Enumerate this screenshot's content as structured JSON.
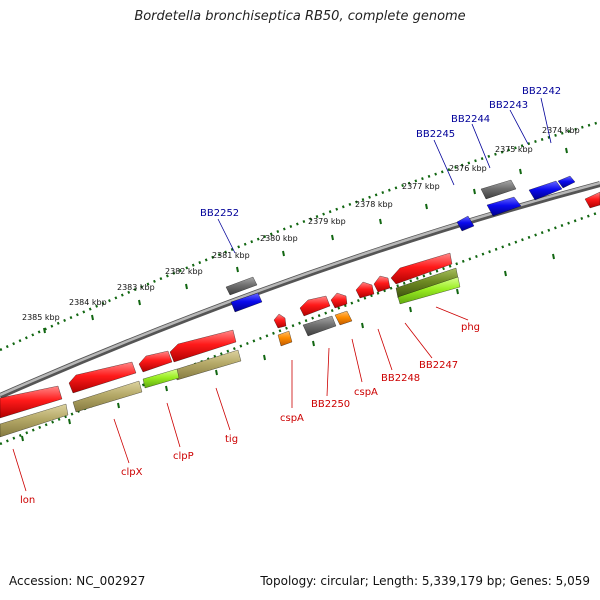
{
  "title": "Bordetella bronchiseptica RB50, complete genome",
  "footer": {
    "accession": "Accession: NC_002927",
    "summary": "Topology: circular; Length: 5,339,179 bp; Genes: 5,059"
  },
  "colors": {
    "forward_gene": "#0000dd",
    "reverse_gene": "#ee0000",
    "other_gene": "#666666",
    "small_gene": "#ff8800",
    "rrna_like": "#b5a968",
    "green_feature": "#99ee22",
    "dark_green_feature": "#6e8a22",
    "backbone": "#808080",
    "ruler": "#116611",
    "forward_label": "#000099",
    "reverse_label": "#cc0000"
  },
  "ruler_ticks": [
    "2374 kbp",
    "2375 kbp",
    "2376 kbp",
    "2377 kbp",
    "2378 kbp",
    "2379 kbp",
    "2380 kbp",
    "2381 kbp",
    "2382 kbp",
    "2383 kbp",
    "2384 kbp",
    "2385 kbp"
  ],
  "forward_labels": [
    "BB2242",
    "BB2243",
    "BB2244",
    "BB2245",
    "BB2252"
  ],
  "reverse_labels": [
    "phg",
    "BB2247",
    "BB2248",
    "cspA",
    "BB2250",
    "cspA",
    "tig",
    "clpP",
    "clpX",
    "lon"
  ]
}
